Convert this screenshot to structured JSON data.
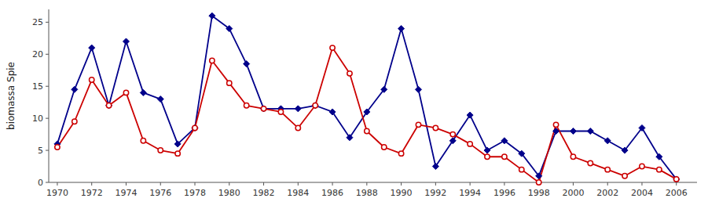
{
  "chart_data": {
    "type": "line",
    "ylabel": "biomassa Spie",
    "x": [
      1970,
      1971,
      1972,
      1973,
      1974,
      1975,
      1976,
      1977,
      1978,
      1979,
      1980,
      1981,
      1982,
      1983,
      1984,
      1985,
      1986,
      1987,
      1988,
      1989,
      1990,
      1991,
      1992,
      1993,
      1994,
      1995,
      1996,
      1997,
      1998,
      1999,
      2000,
      2001,
      2002,
      2003,
      2004,
      2005,
      2006
    ],
    "series": [
      {
        "color": "#00008B",
        "marker": "diamond",
        "values": [
          6,
          14.5,
          21,
          12,
          22,
          14,
          13,
          6,
          8.5,
          26,
          24,
          18.5,
          11.5,
          11.5,
          11.5,
          12,
          11,
          7,
          11,
          14.5,
          24,
          14.5,
          2.5,
          6.5,
          10.5,
          5,
          6.5,
          4.5,
          1,
          8,
          8,
          8,
          6.5,
          5,
          8.5,
          4,
          0.5
        ]
      },
      {
        "color": "#cc0000",
        "marker": "circle",
        "values": [
          5.5,
          9.5,
          16,
          12,
          14,
          6.5,
          5,
          4.5,
          8.5,
          19,
          15.5,
          12,
          11.5,
          11,
          8.5,
          12,
          21,
          17,
          8,
          5.5,
          4.5,
          9,
          8.5,
          7.5,
          6,
          4,
          4,
          2,
          0,
          9,
          4,
          3,
          2,
          1,
          2.5,
          2,
          0.5
        ]
      }
    ],
    "xlim": [
      1969.5,
      2007.2
    ],
    "xticks": [
      1970,
      1972,
      1974,
      1976,
      1978,
      1980,
      1982,
      1984,
      1986,
      1988,
      1990,
      1992,
      1994,
      1996,
      1998,
      2000,
      2002,
      2004,
      2006
    ],
    "ylim": [
      0,
      27
    ],
    "yticks": [
      0,
      5,
      10,
      15,
      20,
      25
    ],
    "grid": false
  }
}
